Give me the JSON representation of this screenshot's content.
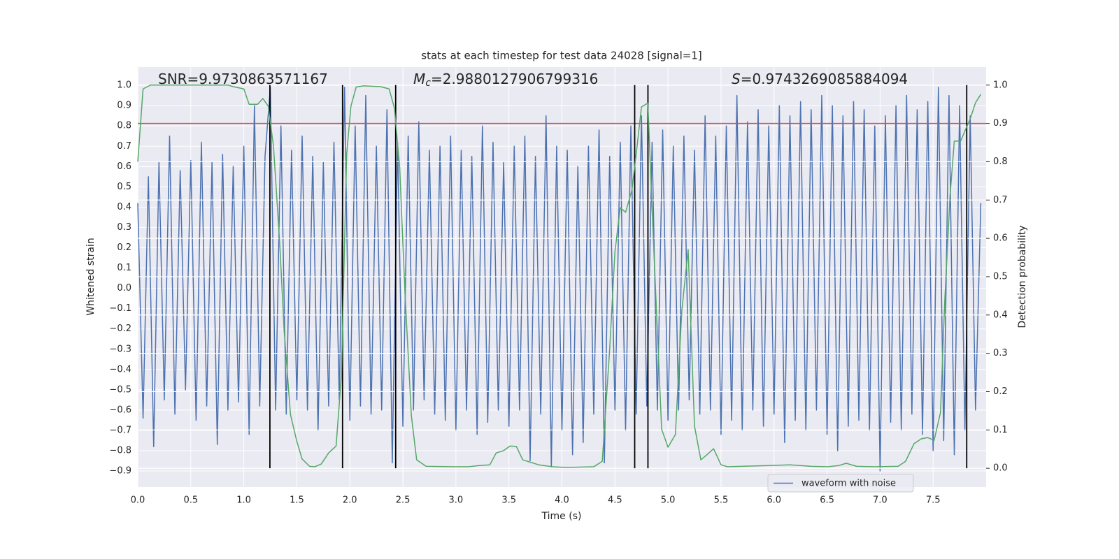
{
  "chart_data": {
    "type": "line",
    "title": "stats at each timestep for test data 24028 [signal=1]",
    "xlabel": "Time (s)",
    "ylabel": "Whitened strain",
    "y2label": "Detection probability",
    "annotations": [
      {
        "text": "SNR=9.9730863571167"
      },
      {
        "symbol": "M",
        "subscript": "c",
        "text": "=2.9880127906799316"
      },
      {
        "symbol": "S",
        "text": "=0.9743269085884094"
      }
    ],
    "xlim": [
      0,
      8
    ],
    "xticks": [
      {
        "value": 0,
        "label": "0.0"
      },
      0.5,
      {
        "value": 1,
        "label": "1.0"
      },
      1.5,
      {
        "value": 2,
        "label": "2.0"
      },
      2.5,
      {
        "value": 3,
        "label": "3.0"
      },
      3.5,
      {
        "value": 4,
        "label": "4.0"
      },
      4.5,
      {
        "value": 5,
        "label": "5.0"
      },
      5.5,
      {
        "value": 6,
        "label": "6.0"
      },
      6.5,
      {
        "value": 7,
        "label": "7.0"
      },
      7.5
    ],
    "ylim": [
      -0.979,
      1.09
    ],
    "yticks": [
      {
        "value": -0.9,
        "label": "−0.9"
      },
      {
        "value": -0.8,
        "label": "−0.8"
      },
      {
        "value": -0.7,
        "label": "−0.7"
      },
      {
        "value": -0.6,
        "label": "−0.6"
      },
      {
        "value": -0.5,
        "label": "−0.5"
      },
      {
        "value": -0.4,
        "label": "−0.4"
      },
      {
        "value": -0.3,
        "label": "−0.3"
      },
      {
        "value": -0.2,
        "label": "−0.2"
      },
      {
        "value": -0.1,
        "label": "−0.1"
      },
      {
        "value": 0,
        "label": "0.0"
      },
      0.1,
      0.2,
      0.3,
      0.4,
      0.5,
      0.6,
      0.7,
      0.8,
      0.9,
      {
        "value": 1,
        "label": "1.0"
      }
    ],
    "y2lim": [
      -0.049,
      1.047
    ],
    "y2ticks": [
      {
        "value": 0,
        "label": "0.0"
      },
      0.1,
      0.2,
      0.3,
      0.4,
      0.5,
      0.6,
      0.7,
      0.8,
      0.9,
      {
        "value": 1,
        "label": "1.0"
      }
    ],
    "grid": true,
    "legend": "lower right",
    "series": [
      {
        "name": "waveform with noise",
        "color": "#4c72b0",
        "x": [
          0,
          0.05,
          0.1,
          0.15,
          0.2,
          0.25,
          0.3,
          0.35,
          0.4,
          0.45,
          0.5,
          0.55,
          0.6,
          0.65,
          0.7,
          0.75,
          0.8,
          0.85,
          0.9,
          0.95,
          1,
          1.05,
          1.1,
          1.15,
          1.2,
          1.25,
          1.3,
          1.35,
          1.4,
          1.45,
          1.5,
          1.55,
          1.6,
          1.65,
          1.7,
          1.75,
          1.8,
          1.85,
          1.9,
          1.95,
          2,
          2.05,
          2.1,
          2.15,
          2.2,
          2.25,
          2.3,
          2.35,
          2.4,
          2.45,
          2.5,
          2.55,
          2.6,
          2.65,
          2.7,
          2.75,
          2.8,
          2.85,
          2.9,
          2.95,
          3,
          3.05,
          3.1,
          3.15,
          3.2,
          3.25,
          3.3,
          3.35,
          3.4,
          3.45,
          3.5,
          3.55,
          3.6,
          3.65,
          3.7,
          3.75,
          3.8,
          3.85,
          3.9,
          3.95,
          4,
          4.05,
          4.1,
          4.15,
          4.2,
          4.25,
          4.3,
          4.35,
          4.4,
          4.45,
          4.5,
          4.55,
          4.6,
          4.65,
          4.7,
          4.75,
          4.8,
          4.85,
          4.9,
          4.95,
          5,
          5.05,
          5.1,
          5.15,
          5.2,
          5.25,
          5.3,
          5.35,
          5.4,
          5.45,
          5.5,
          5.55,
          5.6,
          5.65,
          5.7,
          5.75,
          5.8,
          5.85,
          5.9,
          5.95,
          6,
          6.05,
          6.1,
          6.15,
          6.2,
          6.25,
          6.3,
          6.35,
          6.4,
          6.45,
          6.5,
          6.55,
          6.6,
          6.65,
          6.7,
          6.75,
          6.8,
          6.85,
          6.9,
          6.95,
          7,
          7.05,
          7.1,
          7.15,
          7.2,
          7.25,
          7.3,
          7.35,
          7.4,
          7.45,
          7.5,
          7.55,
          7.6,
          7.65,
          7.7,
          7.75,
          7.8,
          7.85,
          7.9,
          7.95
        ],
        "values": [
          0.42,
          -0.64,
          0.55,
          -0.78,
          0.62,
          -0.55,
          0.75,
          -0.62,
          0.58,
          -0.5,
          0.63,
          -0.65,
          0.72,
          -0.58,
          0.62,
          -0.77,
          0.66,
          -0.6,
          0.6,
          -0.56,
          0.7,
          -0.72,
          0.9,
          -0.58,
          0.65,
          0.99,
          -0.6,
          0.8,
          -0.62,
          0.68,
          -0.55,
          0.75,
          -0.6,
          0.65,
          -0.7,
          0.62,
          -0.58,
          0.72,
          -0.55,
          0.99,
          -0.65,
          0.8,
          -0.58,
          0.95,
          -0.62,
          0.7,
          -0.6,
          0.88,
          -0.86,
          0.72,
          -0.68,
          0.75,
          -0.6,
          0.82,
          -0.55,
          0.68,
          -0.62,
          0.7,
          -0.65,
          0.75,
          -0.7,
          0.68,
          -0.6,
          0.65,
          -0.72,
          0.8,
          -0.66,
          0.72,
          -0.6,
          0.62,
          -0.68,
          0.7,
          -0.6,
          0.75,
          -0.85,
          0.65,
          -0.62,
          0.85,
          -0.88,
          0.7,
          -0.7,
          0.68,
          -0.82,
          0.6,
          -0.76,
          0.7,
          -0.62,
          0.78,
          -0.86,
          0.65,
          -0.6,
          0.72,
          -0.7,
          0.8,
          -0.62,
          0.85,
          -0.58,
          0.72,
          -0.6,
          0.78,
          -0.65,
          0.7,
          -0.6,
          0.75,
          -0.55,
          0.68,
          -0.62,
          0.85,
          -0.6,
          0.75,
          -0.72,
          0.8,
          -0.65,
          0.95,
          -0.7,
          0.82,
          -0.6,
          0.88,
          -0.68,
          0.8,
          -0.62,
          0.9,
          -0.76,
          0.85,
          -0.65,
          0.92,
          -0.7,
          0.88,
          -0.6,
          0.95,
          -0.72,
          0.9,
          -0.8,
          0.85,
          -0.68,
          0.92,
          -0.65,
          0.88,
          -0.7,
          0.8,
          -0.9,
          0.85,
          -0.66,
          0.9,
          -0.7,
          0.95,
          -0.62,
          0.88,
          -0.72,
          0.92,
          -0.8,
          0.99,
          -0.75,
          0.95,
          -0.82,
          0.9,
          -0.7,
          0.85,
          -0.6,
          0.42
        ]
      },
      {
        "color": "#55a868",
        "axis": "y2",
        "x": [
          0,
          0.05,
          0.12,
          0.85,
          0.9,
          1.0,
          1.05,
          1.13,
          1.18,
          1.23,
          1.28,
          1.34,
          1.38,
          1.44,
          1.5,
          1.55,
          1.62,
          1.67,
          1.73,
          1.8,
          1.87,
          1.92,
          1.97,
          2.01,
          2.06,
          2.13,
          2.29,
          2.37,
          2.42,
          2.47,
          2.52,
          2.58,
          2.63,
          2.72,
          2.99,
          3.12,
          3.22,
          3.32,
          3.38,
          3.45,
          3.51,
          3.57,
          3.63,
          3.78,
          3.91,
          4.04,
          4.3,
          4.38,
          4.45,
          4.5,
          4.55,
          4.6,
          4.66,
          4.7,
          4.75,
          4.81,
          4.85,
          4.94,
          5.0,
          5.07,
          5.13,
          5.19,
          5.25,
          5.31,
          5.37,
          5.43,
          5.5,
          5.56,
          5.69,
          5.95,
          6.15,
          6.35,
          6.51,
          6.61,
          6.68,
          6.78,
          6.94,
          7.17,
          7.24,
          7.32,
          7.39,
          7.45,
          7.51,
          7.57,
          7.61,
          7.66,
          7.7,
          7.76,
          7.8,
          7.85,
          7.9,
          7.95
        ],
        "values": [
          0.8,
          0.99,
          1.0,
          1.0,
          0.996,
          0.99,
          0.95,
          0.95,
          0.965,
          0.945,
          0.84,
          0.58,
          0.36,
          0.14,
          0.07,
          0.024,
          0.005,
          0.004,
          0.011,
          0.04,
          0.058,
          0.24,
          0.82,
          0.945,
          0.995,
          0.998,
          0.996,
          0.99,
          0.94,
          0.785,
          0.456,
          0.137,
          0.022,
          0.005,
          0.004,
          0.004,
          0.007,
          0.009,
          0.04,
          0.046,
          0.058,
          0.057,
          0.022,
          0.009,
          0.004,
          0.002,
          0.004,
          0.018,
          0.31,
          0.566,
          0.68,
          0.668,
          0.726,
          0.82,
          0.943,
          0.953,
          0.675,
          0.102,
          0.055,
          0.088,
          0.41,
          0.571,
          0.11,
          0.022,
          0.036,
          0.051,
          0.009,
          0.004,
          0.005,
          0.007,
          0.009,
          0.005,
          0.004,
          0.007,
          0.013,
          0.005,
          0.004,
          0.005,
          0.018,
          0.064,
          0.077,
          0.08,
          0.073,
          0.146,
          0.438,
          0.712,
          0.854,
          0.854,
          0.88,
          0.912,
          0.954,
          0.976
        ]
      }
    ],
    "hline": {
      "value": 0.9,
      "axis": "y2",
      "color": "#c44e52"
    },
    "vlines": {
      "values": [
        1.246,
        1.931,
        2.432,
        4.686,
        4.811,
        7.817
      ],
      "y2range": [
        0,
        1
      ],
      "color": "#000000"
    }
  }
}
